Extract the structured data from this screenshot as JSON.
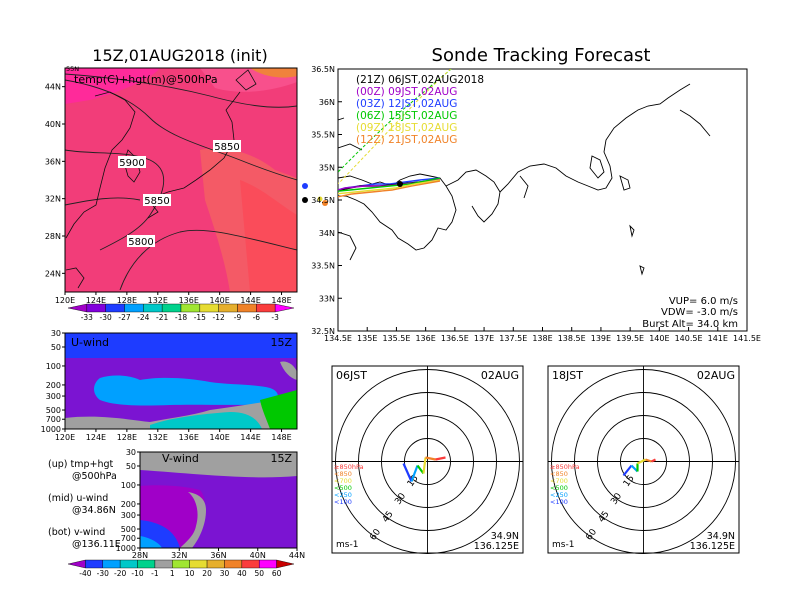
{
  "titles": {
    "left": "15Z,01AUG2018 (init)",
    "right": "Sonde Tracking Forecast"
  },
  "map500": {
    "subtitle": "temp(C)+hgt(m)@500hPa",
    "corner_label": "55N",
    "lat_ticks": [
      "44N",
      "40N",
      "36N",
      "32N",
      "28N",
      "24N"
    ],
    "lon_ticks": [
      "120E",
      "124E",
      "128E",
      "132E",
      "136E",
      "140E",
      "144E",
      "148E"
    ],
    "contour_labels": [
      "5900",
      "5850",
      "5850",
      "5800"
    ],
    "temp_colorbar": [
      "-33",
      "-30",
      "-27",
      "-24",
      "-21",
      "-18",
      "-15",
      "-12",
      "-9",
      "-6",
      "-3"
    ],
    "temp_colors": [
      "#a000c8",
      "#8200dc",
      "#1e3cff",
      "#00a0ff",
      "#00c8c8",
      "#00d28c",
      "#a0e632",
      "#e6dc32",
      "#e6af2d",
      "#f08228",
      "#fa3c3c",
      "#ff00ff"
    ]
  },
  "uwind": {
    "label": "U-wind",
    "time": "15Z",
    "p_ticks": [
      "30",
      "50",
      "100",
      "200",
      "300",
      "500",
      "700",
      "1000"
    ],
    "lon_ticks": [
      "120E",
      "124E",
      "128E",
      "132E",
      "136E",
      "140E",
      "144E",
      "148E"
    ]
  },
  "vwind": {
    "label": "V-wind",
    "time": "15Z",
    "p_ticks": [
      "30",
      "50",
      "100",
      "200",
      "300",
      "500",
      "700",
      "1000"
    ],
    "lat_ticks": [
      "28N",
      "32N",
      "36N",
      "40N",
      "44N"
    ]
  },
  "legend_text": {
    "up1": "(up) tmp+hgt",
    "up2": "@500hPa",
    "mid1": "(mid) u-wind",
    "mid2": "@34.86N",
    "bot1": "(bot) v-wind",
    "bot2": "@136.11E"
  },
  "wind_colorbar": {
    "labels": [
      "-40",
      "-30",
      "-20",
      "-10",
      "-1",
      "1",
      "10",
      "20",
      "30",
      "40",
      "50",
      "60"
    ],
    "colors": [
      "#a000c8",
      "#1e3cff",
      "#00a0ff",
      "#00c8c8",
      "#00d28c",
      "#a0a0a0",
      "#a0e632",
      "#e6dc32",
      "#e6af2d",
      "#f08228",
      "#fa3c3c",
      "#ff00ff",
      "#c80000"
    ]
  },
  "track_map": {
    "lat_ticks": [
      "36.5N",
      "36N",
      "35.5N",
      "35N",
      "34.5N",
      "34N",
      "33.5N",
      "33N",
      "32.5N"
    ],
    "lon_ticks": [
      "134.5E",
      "135E",
      "135.5E",
      "136E",
      "136.5E",
      "137E",
      "137.5E",
      "138E",
      "138.5E",
      "139E",
      "139.5E",
      "140E",
      "140.5E",
      "141E",
      "141.5E"
    ],
    "launches": [
      {
        "label": "(21Z)  06JST,02AUG2018",
        "color": "#000000"
      },
      {
        "label": "(00Z)  09JST,02AUG",
        "color": "#a000c8"
      },
      {
        "label": "(03Z)  12JST,02AUG",
        "color": "#1e3cff"
      },
      {
        "label": "(06Z)  15JST,02AUG",
        "color": "#00c800"
      },
      {
        "label": "(09Z)  18JST,02AUG",
        "color": "#e6dc32"
      },
      {
        "label": "(12Z)  21JST,02AUG",
        "color": "#f08228"
      }
    ],
    "params": [
      "VUP=  6.0  m/s",
      "VDW= -3.0  m/s",
      "Burst Alt=  34.0  km"
    ]
  },
  "hodo_left": {
    "time": "06JST",
    "date": "02AUG",
    "levels": [
      "≥850hPa",
      "<850",
      "<700",
      "<500",
      "<250",
      "<100"
    ],
    "level_colors": [
      "#fa3c3c",
      "#f08228",
      "#e6dc32",
      "#00c800",
      "#00a0ff",
      "#1e3cff"
    ],
    "ring_labels": [
      "15",
      "30",
      "45",
      "60"
    ],
    "lat": "34.9N",
    "lon": "136.125E",
    "unit": "ms-1"
  },
  "hodo_right": {
    "time": "18JST",
    "date": "02AUG",
    "levels": [
      "≥850hPa",
      "<850",
      "<700",
      "<500",
      "<250",
      "<100"
    ],
    "level_colors": [
      "#fa3c3c",
      "#f08228",
      "#e6dc32",
      "#00c800",
      "#00a0ff",
      "#1e3cff"
    ],
    "ring_labels": [
      "15",
      "30",
      "45",
      "60"
    ],
    "lat": "34.9N",
    "lon": "136.125E",
    "unit": "ms-1"
  }
}
